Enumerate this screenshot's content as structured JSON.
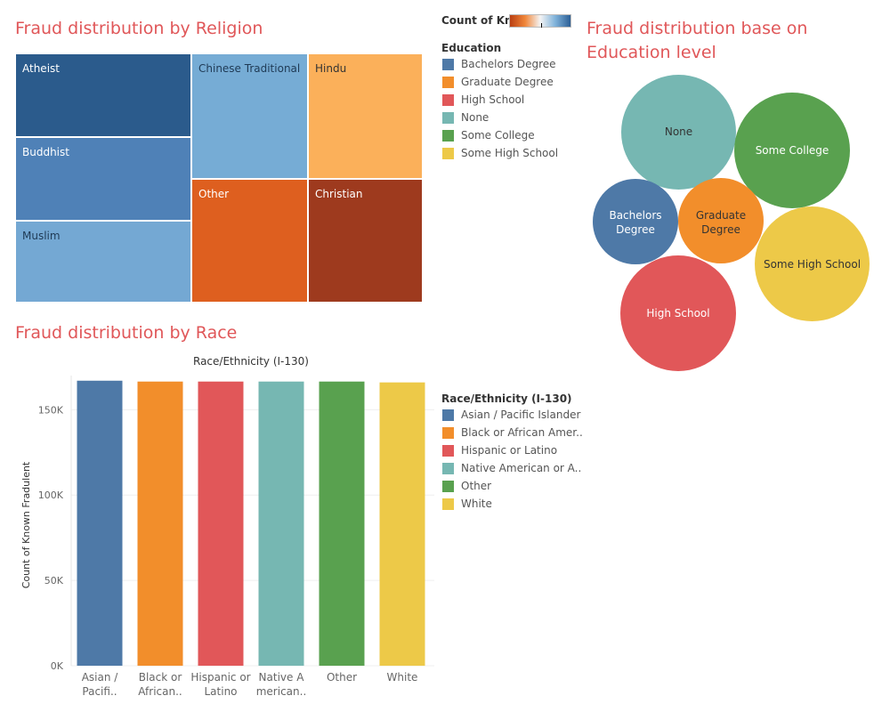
{
  "religion_chart": {
    "title": "Fraud distribution by Religion",
    "color_legend_label": "Count of Kn..",
    "cells": [
      {
        "label": "Atheist",
        "shade": "#2b5b8c"
      },
      {
        "label": "Buddhist",
        "shade": "#4f81b7"
      },
      {
        "label": "Muslim",
        "shade": "#74a8d3"
      },
      {
        "label": "Chinese Traditional",
        "shade": "#76acd5"
      },
      {
        "label": "Hindu",
        "shade": "#fbb05a"
      },
      {
        "label": "Other",
        "shade": "#de5f1f"
      },
      {
        "label": "Christian",
        "shade": "#9e3a1e"
      }
    ]
  },
  "education_chart": {
    "title_line1": "Fraud distribution base on",
    "title_line2": "Education level",
    "legend_title": "Education",
    "legend": [
      {
        "label": "Bachelors Degree",
        "color": "#4e79a7"
      },
      {
        "label": "Graduate Degree",
        "color": "#f28e2b"
      },
      {
        "label": "High School",
        "color": "#e15759"
      },
      {
        "label": "None",
        "color": "#76b7b2"
      },
      {
        "label": "Some College",
        "color": "#59a14f"
      },
      {
        "label": "Some High School",
        "color": "#edc948"
      }
    ],
    "bubbles": [
      {
        "line1": "None",
        "line2": "",
        "color": "#76b7b2",
        "text_color": "#333333"
      },
      {
        "line1": "Some College",
        "line2": "",
        "color": "#59a14f",
        "text_color": "#ffffff"
      },
      {
        "line1": "Bachelors",
        "line2": "Degree",
        "color": "#4e79a7",
        "text_color": "#ffffff"
      },
      {
        "line1": "Graduate",
        "line2": "Degree",
        "color": "#f28e2b",
        "text_color": "#333333"
      },
      {
        "line1": "Some High School",
        "line2": "",
        "color": "#edc948",
        "text_color": "#333333"
      },
      {
        "line1": "High School",
        "line2": "",
        "color": "#e15759",
        "text_color": "#ffffff"
      }
    ]
  },
  "race_chart": {
    "title": "Fraud distribution by Race",
    "legend_title": "Race/Ethnicity (I-130)",
    "legend": [
      {
        "label": "Asian / Pacific Islander",
        "color": "#4e79a7"
      },
      {
        "label": "Black or African Amer..",
        "color": "#f28e2b"
      },
      {
        "label": "Hispanic or Latino",
        "color": "#e15759"
      },
      {
        "label": "Native American or A..",
        "color": "#76b7b2"
      },
      {
        "label": "Other",
        "color": "#59a14f"
      },
      {
        "label": "White",
        "color": "#edc948"
      }
    ]
  },
  "chart_data": {
    "type": "bar",
    "title": "Race/Ethnicity (I-130)",
    "ylabel": "Count of Known Fradulent",
    "xlabel": "",
    "categories": [
      [
        "Asian /",
        "Pacifi.."
      ],
      [
        "Black or",
        "African.."
      ],
      [
        "Hispanic or",
        "Latino"
      ],
      [
        "Native A",
        "merican.."
      ],
      [
        "Other"
      ],
      [
        "White"
      ]
    ],
    "values": [
      167000,
      166500,
      166500,
      166500,
      166500,
      166000
    ],
    "colors": [
      "#4e79a7",
      "#f28e2b",
      "#e15759",
      "#76b7b2",
      "#59a14f",
      "#edc948"
    ],
    "ylim": [
      0,
      170000
    ],
    "yticks": [
      0,
      50000,
      100000,
      150000
    ],
    "ytick_labels": [
      "0K",
      "50K",
      "100K",
      "150K"
    ],
    "grid": true
  }
}
